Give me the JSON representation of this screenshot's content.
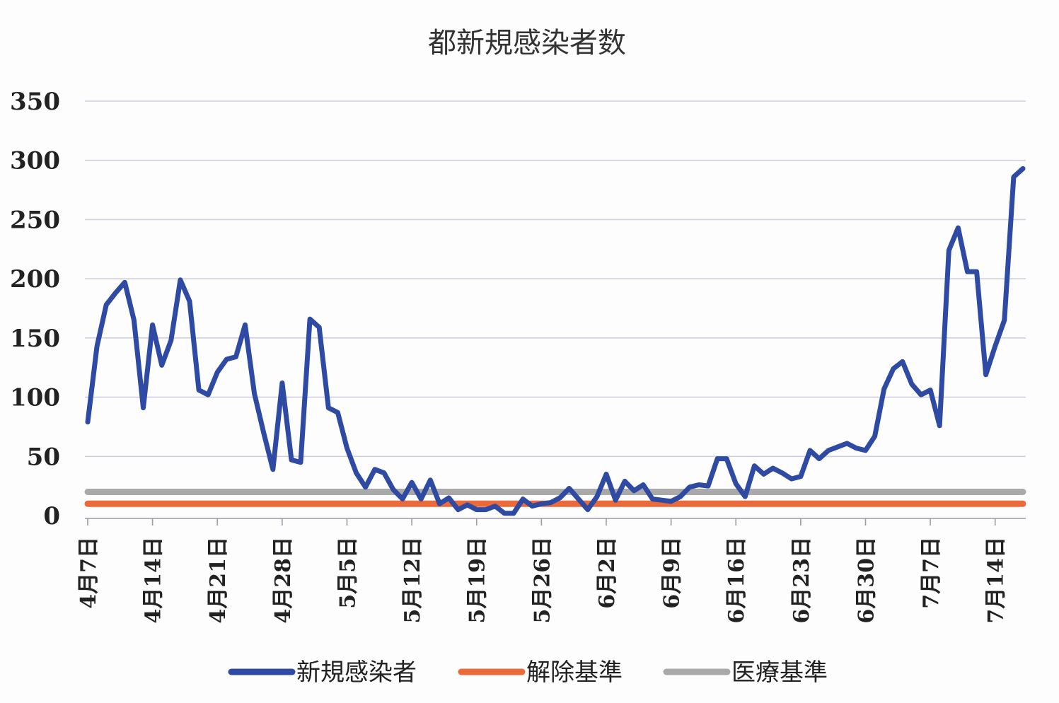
{
  "chart_data": {
    "type": "line",
    "title": "都新規感染者数",
    "xlabel": "",
    "ylabel": "",
    "ylim": [
      0,
      350
    ],
    "yticks": [
      0,
      50,
      100,
      150,
      200,
      250,
      300,
      350
    ],
    "grid": true,
    "legend_position": "bottom",
    "x_tick_labels": [
      "4月7日",
      "4月14日",
      "4月21日",
      "4月28日",
      "5月5日",
      "5月12日",
      "5月19日",
      "5月26日",
      "6月2日",
      "6月9日",
      "6月16日",
      "6月23日",
      "6月30日",
      "7月7日",
      "7月14日"
    ],
    "x_tick_positions": [
      0,
      7,
      14,
      21,
      28,
      35,
      42,
      49,
      56,
      63,
      70,
      77,
      84,
      91,
      98
    ],
    "x_count": 102,
    "series": [
      {
        "name": "新規感染者",
        "color": "#2e4aa3",
        "values": [
          79,
          143,
          178,
          188,
          197,
          165,
          91,
          161,
          127,
          148,
          199,
          181,
          106,
          102,
          121,
          132,
          134,
          161,
          103,
          70,
          39,
          112,
          47,
          45,
          166,
          159,
          91,
          87,
          57,
          36,
          24,
          39,
          36,
          22,
          14,
          28,
          14,
          30,
          10,
          15,
          5,
          9,
          5,
          5,
          8,
          2,
          2,
          14,
          8,
          10,
          11,
          15,
          23,
          14,
          5,
          16,
          35,
          13,
          29,
          21,
          26,
          14,
          13,
          12,
          16,
          24,
          26,
          25,
          48,
          48,
          27,
          16,
          42,
          35,
          40,
          36,
          31,
          33,
          55,
          48,
          55,
          58,
          61,
          57,
          55,
          67,
          107,
          124,
          130,
          111,
          102,
          106,
          76,
          224,
          243,
          206,
          206,
          119,
          143,
          165,
          286,
          293
        ]
      },
      {
        "name": "解除基準",
        "color": "#ea6a3a",
        "values": [
          10,
          10,
          10,
          10,
          10,
          10,
          10,
          10,
          10,
          10,
          10,
          10,
          10,
          10,
          10,
          10,
          10,
          10,
          10,
          10,
          10,
          10,
          10,
          10,
          10,
          10,
          10,
          10,
          10,
          10,
          10,
          10,
          10,
          10,
          10,
          10,
          10,
          10,
          10,
          10,
          10,
          10,
          10,
          10,
          10,
          10,
          10,
          10,
          10,
          10,
          10,
          10,
          10,
          10,
          10,
          10,
          10,
          10,
          10,
          10,
          10,
          10,
          10,
          10,
          10,
          10,
          10,
          10,
          10,
          10,
          10,
          10,
          10,
          10,
          10,
          10,
          10,
          10,
          10,
          10,
          10,
          10,
          10,
          10,
          10,
          10,
          10,
          10,
          10,
          10,
          10,
          10,
          10,
          10,
          10,
          10,
          10,
          10,
          10,
          10,
          10,
          10
        ]
      },
      {
        "name": "医療基準",
        "color": "#a9a9a9",
        "values": [
          20,
          20,
          20,
          20,
          20,
          20,
          20,
          20,
          20,
          20,
          20,
          20,
          20,
          20,
          20,
          20,
          20,
          20,
          20,
          20,
          20,
          20,
          20,
          20,
          20,
          20,
          20,
          20,
          20,
          20,
          20,
          20,
          20,
          20,
          20,
          20,
          20,
          20,
          20,
          20,
          20,
          20,
          20,
          20,
          20,
          20,
          20,
          20,
          20,
          20,
          20,
          20,
          20,
          20,
          20,
          20,
          20,
          20,
          20,
          20,
          20,
          20,
          20,
          20,
          20,
          20,
          20,
          20,
          20,
          20,
          20,
          20,
          20,
          20,
          20,
          20,
          20,
          20,
          20,
          20,
          20,
          20,
          20,
          20,
          20,
          20,
          20,
          20,
          20,
          20,
          20,
          20,
          20,
          20,
          20,
          20,
          20,
          20,
          20,
          20,
          20,
          20
        ]
      }
    ]
  }
}
